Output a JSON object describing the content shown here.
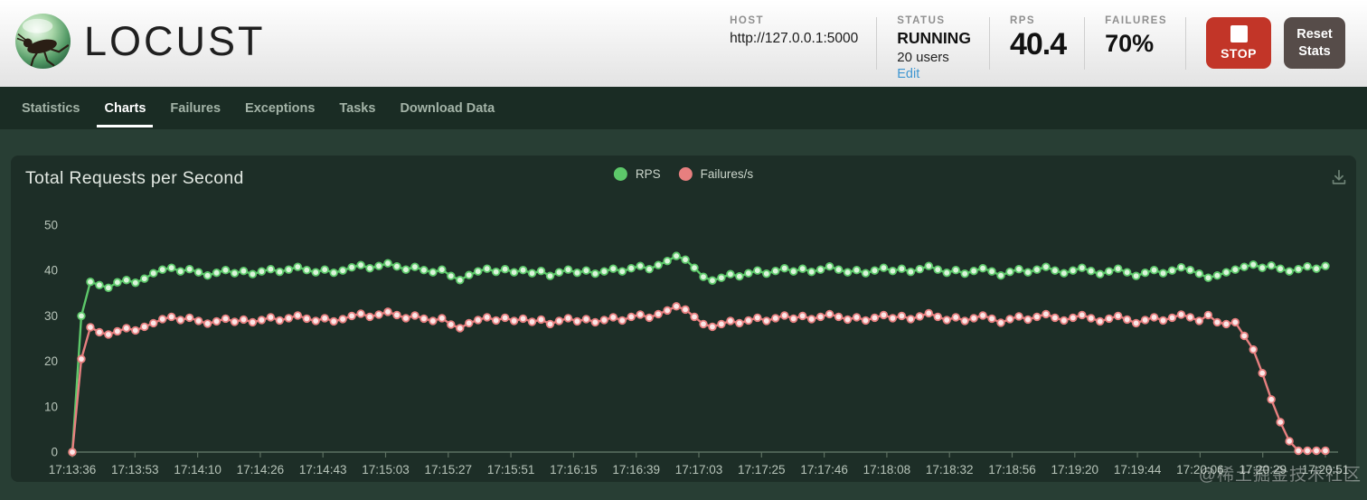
{
  "header": {
    "logo_text": "LOCUST",
    "host": {
      "label": "HOST",
      "value": "http://127.0.0.1:5000"
    },
    "status": {
      "label": "STATUS",
      "value": "RUNNING",
      "users": "20 users",
      "edit_link": "Edit"
    },
    "rps": {
      "label": "RPS",
      "value": "40.4"
    },
    "failures": {
      "label": "FAILURES",
      "value": "70%"
    },
    "stop_button_label": "STOP",
    "reset_button_label": "Reset Stats"
  },
  "nav": {
    "tabs": [
      {
        "label": "Statistics",
        "active": false
      },
      {
        "label": "Charts",
        "active": true
      },
      {
        "label": "Failures",
        "active": false
      },
      {
        "label": "Exceptions",
        "active": false
      },
      {
        "label": "Tasks",
        "active": false
      },
      {
        "label": "Download Data",
        "active": false
      }
    ]
  },
  "chart": {
    "title": "Total Requests per Second",
    "legend": [
      {
        "label": "RPS",
        "color": "#5dc86a"
      },
      {
        "label": "Failures/s",
        "color": "#e77f7f"
      }
    ],
    "download_icon": "download-icon"
  },
  "watermark": "@稀土掘金技术社区",
  "colors": {
    "stop_red": "#c23528",
    "reset_gray": "#564c49",
    "nav_bg": "#1a2c24",
    "page_bg": "#283e34",
    "panel_bg": "#1d2e27",
    "axis_text": "#b7c4b9",
    "axis_line": "#5d7162",
    "edit_link_blue": "#3f96d1"
  },
  "chart_data": {
    "type": "line",
    "title": "Total Requests per Second",
    "xlabel": "",
    "ylabel": "",
    "ylim": [
      0,
      50
    ],
    "yticks": [
      0,
      10,
      20,
      30,
      40,
      50
    ],
    "grid": false,
    "legend_position": "top-center",
    "x_tick_labels": [
      "17:13:36",
      "17:13:53",
      "17:14:10",
      "17:14:26",
      "17:14:43",
      "17:15:03",
      "17:15:27",
      "17:15:51",
      "17:16:15",
      "17:16:39",
      "17:17:03",
      "17:17:25",
      "17:17:46",
      "17:18:08",
      "17:18:32",
      "17:18:56",
      "17:19:20",
      "17:19:44",
      "17:20:06",
      "17:20:29",
      "17:20:51"
    ],
    "series": [
      {
        "name": "RPS",
        "color": "#5dc86a",
        "dot_fill": "#dcf5dc",
        "values": [
          0,
          30,
          37.5,
          36.8,
          36.2,
          37.4,
          37.9,
          37.3,
          38.2,
          39.4,
          40.2,
          40.6,
          39.8,
          40.3,
          39.6,
          38.9,
          39.5,
          40.1,
          39.4,
          39.9,
          39.2,
          39.8,
          40.3,
          39.7,
          40.2,
          40.8,
          40.1,
          39.6,
          40.2,
          39.5,
          40.0,
          40.7,
          41.2,
          40.5,
          41.0,
          41.6,
          40.9,
          40.2,
          40.8,
          40.1,
          39.6,
          40.2,
          38.8,
          37.9,
          39.0,
          39.8,
          40.4,
          39.7,
          40.3,
          39.6,
          40.1,
          39.4,
          39.9,
          38.8,
          39.6,
          40.2,
          39.5,
          40.0,
          39.3,
          39.8,
          40.4,
          39.8,
          40.5,
          41.0,
          40.3,
          41.2,
          42.1,
          43.2,
          42.4,
          40.6,
          38.6,
          37.8,
          38.4,
          39.2,
          38.7,
          39.4,
          40.0,
          39.3,
          39.9,
          40.5,
          39.8,
          40.4,
          39.7,
          40.2,
          40.9,
          40.2,
          39.6,
          40.1,
          39.4,
          40.0,
          40.6,
          39.9,
          40.4,
          39.7,
          40.3,
          41.0,
          40.2,
          39.5,
          40.1,
          39.3,
          39.9,
          40.5,
          39.8,
          38.9,
          39.7,
          40.3,
          39.6,
          40.2,
          40.8,
          40.0,
          39.4,
          40.0,
          40.6,
          39.9,
          39.2,
          39.8,
          40.4,
          39.6,
          38.8,
          39.5,
          40.1,
          39.4,
          40.0,
          40.7,
          40.1,
          39.3,
          38.4,
          38.9,
          39.6,
          40.2,
          40.8,
          41.3,
          40.6,
          41.1,
          40.4,
          39.8,
          40.3,
          40.9,
          40.4,
          41.0
        ]
      },
      {
        "name": "Failures/s",
        "color": "#e77f7f",
        "dot_fill": "#fbe7e7",
        "values": [
          0,
          20.5,
          27.5,
          26.4,
          25.9,
          26.6,
          27.3,
          26.8,
          27.6,
          28.4,
          29.3,
          29.8,
          29.1,
          29.6,
          28.9,
          28.3,
          28.8,
          29.4,
          28.7,
          29.2,
          28.6,
          29.1,
          29.7,
          29.0,
          29.5,
          30.1,
          29.4,
          28.9,
          29.5,
          28.8,
          29.3,
          30.0,
          30.5,
          29.8,
          30.3,
          30.9,
          30.2,
          29.5,
          30.1,
          29.4,
          28.9,
          29.5,
          28.1,
          27.3,
          28.4,
          29.1,
          29.7,
          29.0,
          29.6,
          28.9,
          29.4,
          28.7,
          29.2,
          28.2,
          28.9,
          29.5,
          28.8,
          29.3,
          28.6,
          29.1,
          29.7,
          29.0,
          29.8,
          30.3,
          29.6,
          30.4,
          31.2,
          32.1,
          31.4,
          29.8,
          28.2,
          27.6,
          28.2,
          28.9,
          28.4,
          29.0,
          29.6,
          28.9,
          29.5,
          30.1,
          29.4,
          30.0,
          29.3,
          29.8,
          30.4,
          29.8,
          29.2,
          29.7,
          29.0,
          29.6,
          30.2,
          29.5,
          30.0,
          29.3,
          29.9,
          30.6,
          29.8,
          29.1,
          29.7,
          28.9,
          29.5,
          30.1,
          29.4,
          28.5,
          29.3,
          29.9,
          29.2,
          29.8,
          30.4,
          29.6,
          29.0,
          29.6,
          30.2,
          29.5,
          28.8,
          29.4,
          30.0,
          29.2,
          28.4,
          29.1,
          29.7,
          29.0,
          29.6,
          30.3,
          29.7,
          28.9,
          30.2,
          28.6,
          28.2,
          28.6,
          25.6,
          22.6,
          17.4,
          11.6,
          6.6,
          2.4,
          0.3,
          0.3,
          0.3,
          0.3
        ]
      }
    ]
  }
}
